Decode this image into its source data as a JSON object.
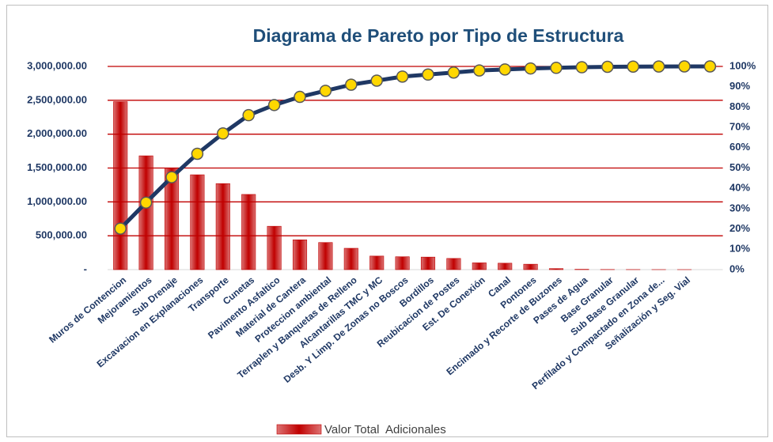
{
  "chart_data": {
    "type": "pareto",
    "title": "Diagrama de Pareto por Tipo de Estructura",
    "categories": [
      "Muros de Contencion",
      "Mejoramientos",
      "Sub Drenaje",
      "Excavacion en Explanaciones",
      "Transporte",
      "Cunetas",
      "Pavimento Asfaltico",
      "Material de Cantera",
      "Proteccion ambiental",
      "Terraplen y Banquetas de Relleno",
      "Alcantarillas TMC y MC",
      "Desb. Y Limp. De Zonas no Boscos",
      "Bordillos",
      "Reubicacion de Postes",
      "Est. De Conexión",
      "Canal",
      "Pontones",
      "Encimado y Recorte de Buzones",
      "Pases de Agua",
      "Base Granular",
      "Sub Base Granular",
      "Perfilado y Compactado en Zona de...",
      "Señalización y Seg. Vial",
      null
    ],
    "series": [
      {
        "name": "Valor Total  Adicionales",
        "color": "#c00000",
        "values": [
          2480000,
          1680000,
          1500000,
          1400000,
          1270000,
          1110000,
          640000,
          440000,
          400000,
          315000,
          200000,
          190000,
          185000,
          165000,
          100000,
          95000,
          80000,
          15000,
          5000,
          2000,
          1000,
          500,
          300,
          0
        ]
      },
      {
        "color": "#1f3864",
        "marker_color": "#ffd700",
        "axis": "y2",
        "values": [
          20.2,
          33,
          45.5,
          57,
          67,
          76,
          81,
          85,
          88,
          91,
          93,
          95,
          96,
          97,
          98,
          98.5,
          99,
          99.3,
          99.6,
          99.8,
          99.9,
          99.95,
          100,
          100
        ]
      }
    ],
    "ylim": [
      0,
      3000000
    ],
    "yticks": [
      {
        "value": 0,
        "label": "-"
      },
      {
        "value": 500000,
        "label": "500,000.00"
      },
      {
        "value": 1000000,
        "label": "1,000,000.00"
      },
      {
        "value": 1500000,
        "label": "1,500,000.00"
      },
      {
        "value": 2000000,
        "label": "2,000,000.00"
      },
      {
        "value": 2500000,
        "label": "2,500,000.00"
      },
      {
        "value": 3000000,
        "label": "3,000,000.00"
      }
    ],
    "y2lim": [
      0,
      100
    ],
    "y2ticks": [
      {
        "value": 0,
        "label": "0%"
      },
      {
        "value": 10,
        "label": "10%"
      },
      {
        "value": 20,
        "label": "20%"
      },
      {
        "value": 30,
        "label": "30%"
      },
      {
        "value": 40,
        "label": "40%"
      },
      {
        "value": 50,
        "label": "50%"
      },
      {
        "value": 60,
        "label": "60%"
      },
      {
        "value": 70,
        "label": "70%"
      },
      {
        "value": 80,
        "label": "80%"
      },
      {
        "value": 90,
        "label": "90%"
      },
      {
        "value": 100,
        "label": "100%"
      }
    ],
    "grid": true,
    "grid_color": "#c00000"
  }
}
